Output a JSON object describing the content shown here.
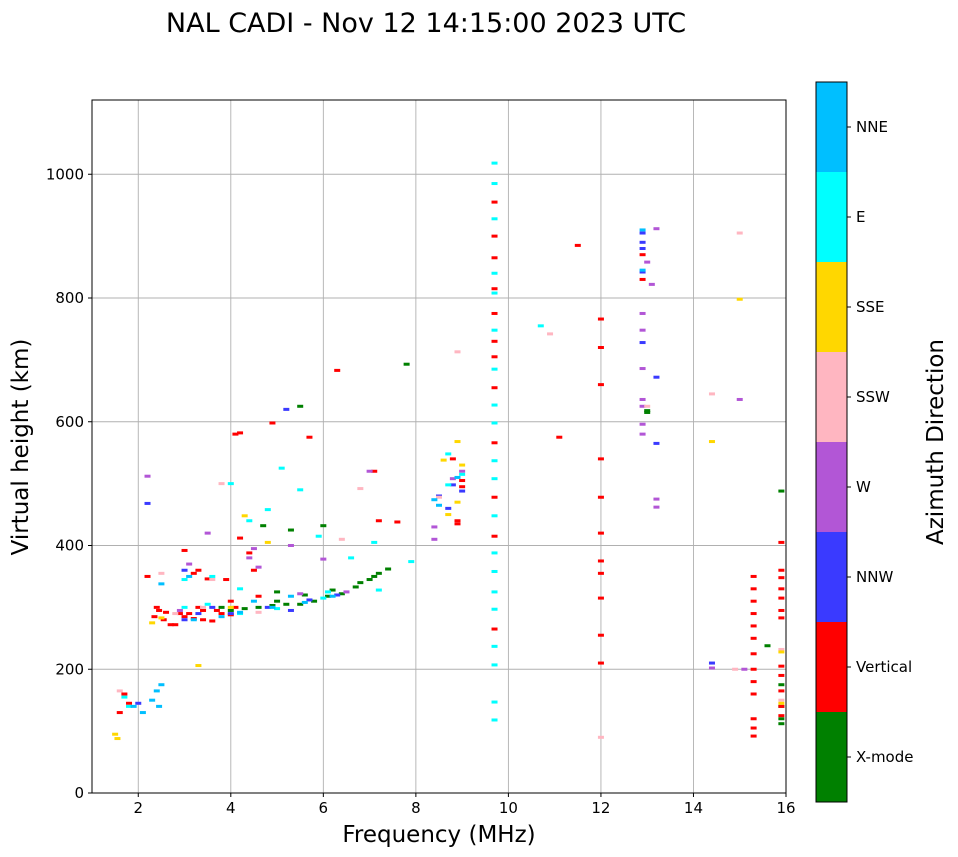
{
  "chart_data": {
    "type": "scatter",
    "title": "NAL CADI - Nov 12 14:15:00 2023 UTC",
    "xlabel": "Frequency (MHz)",
    "ylabel": "Virtual height (km)",
    "xlim": [
      1,
      16
    ],
    "ylim": [
      0,
      1120
    ],
    "x_ticks": [
      2,
      4,
      6,
      8,
      10,
      12,
      14,
      16
    ],
    "y_ticks": [
      0,
      200,
      400,
      600,
      800,
      1000
    ],
    "grid": true,
    "colorbar": {
      "label": "Azimuth Direction",
      "categories": [
        {
          "name": "X-mode",
          "color": "#008000"
        },
        {
          "name": "Vertical",
          "color": "#ff0000"
        },
        {
          "name": "NNW",
          "color": "#3a3aff"
        },
        {
          "name": "W",
          "color": "#b256d6"
        },
        {
          "name": "SSW",
          "color": "#ffb6c1"
        },
        {
          "name": "SSE",
          "color": "#ffd700"
        },
        {
          "name": "E",
          "color": "#00ffff"
        },
        {
          "name": "NNE",
          "color": "#00bfff"
        }
      ]
    },
    "series": [
      {
        "name": "X-mode",
        "points": [
          [
            4.0,
            295
          ],
          [
            4.3,
            298
          ],
          [
            4.6,
            300
          ],
          [
            4.9,
            303
          ],
          [
            5.2,
            305
          ],
          [
            5.5,
            305
          ],
          [
            5.8,
            310
          ],
          [
            6.1,
            318
          ],
          [
            6.4,
            322
          ],
          [
            6.7,
            333
          ],
          [
            7.0,
            345
          ],
          [
            7.2,
            355
          ],
          [
            7.4,
            362
          ],
          [
            3.8,
            300
          ],
          [
            5.0,
            310
          ],
          [
            5.6,
            320
          ],
          [
            6.2,
            328
          ],
          [
            6.8,
            340
          ],
          [
            7.1,
            350
          ],
          [
            7.8,
            693
          ],
          [
            5.5,
            625
          ],
          [
            5.3,
            425
          ],
          [
            4.7,
            432
          ],
          [
            6.0,
            432
          ],
          [
            15.9,
            488
          ],
          [
            15.6,
            238
          ],
          [
            15.9,
            175
          ],
          [
            15.9,
            140
          ],
          [
            15.9,
            120
          ],
          [
            15.9,
            112
          ],
          [
            13.0,
            618
          ],
          [
            13.0,
            615
          ],
          [
            5.0,
            325
          ]
        ]
      },
      {
        "name": "Vertical",
        "points": [
          [
            2.35,
            285
          ],
          [
            2.45,
            295
          ],
          [
            2.55,
            280
          ],
          [
            2.8,
            272
          ],
          [
            2.9,
            290
          ],
          [
            3.0,
            285
          ],
          [
            3.2,
            282
          ],
          [
            3.4,
            280
          ],
          [
            3.6,
            278
          ],
          [
            3.8,
            290
          ],
          [
            4.0,
            288
          ],
          [
            4.1,
            300
          ],
          [
            2.4,
            300
          ],
          [
            2.6,
            292
          ],
          [
            3.1,
            290
          ],
          [
            3.3,
            300
          ],
          [
            3.7,
            295
          ],
          [
            2.7,
            272
          ],
          [
            3.0,
            392
          ],
          [
            3.3,
            360
          ],
          [
            3.5,
            346
          ],
          [
            3.9,
            345
          ],
          [
            4.1,
            580
          ],
          [
            4.2,
            582
          ],
          [
            4.2,
            412
          ],
          [
            4.4,
            388
          ],
          [
            4.6,
            318
          ],
          [
            4.9,
            598
          ],
          [
            5.7,
            575
          ],
          [
            6.3,
            683
          ],
          [
            7.1,
            520
          ],
          [
            7.2,
            440
          ],
          [
            7.6,
            438
          ],
          [
            3.2,
            355
          ],
          [
            4.5,
            360
          ],
          [
            8.9,
            440
          ],
          [
            8.9,
            435
          ],
          [
            9.0,
            505
          ],
          [
            9.0,
            495
          ],
          [
            8.8,
            540
          ],
          [
            9.7,
            955
          ],
          [
            9.7,
            900
          ],
          [
            9.7,
            865
          ],
          [
            9.7,
            815
          ],
          [
            9.7,
            775
          ],
          [
            9.7,
            730
          ],
          [
            9.7,
            705
          ],
          [
            9.7,
            655
          ],
          [
            9.7,
            566
          ],
          [
            9.7,
            478
          ],
          [
            9.7,
            415
          ],
          [
            9.7,
            265
          ],
          [
            11.1,
            575
          ],
          [
            11.5,
            885
          ],
          [
            12.0,
            766
          ],
          [
            12.0,
            720
          ],
          [
            12.0,
            660
          ],
          [
            12.0,
            540
          ],
          [
            12.0,
            478
          ],
          [
            12.0,
            420
          ],
          [
            12.0,
            375
          ],
          [
            12.0,
            355
          ],
          [
            12.0,
            315
          ],
          [
            12.0,
            255
          ],
          [
            12.0,
            210
          ],
          [
            12.9,
            870
          ],
          [
            12.9,
            830
          ],
          [
            15.3,
            350
          ],
          [
            15.3,
            330
          ],
          [
            15.3,
            310
          ],
          [
            15.3,
            290
          ],
          [
            15.3,
            270
          ],
          [
            15.3,
            250
          ],
          [
            15.3,
            225
          ],
          [
            15.3,
            200
          ],
          [
            15.3,
            180
          ],
          [
            15.3,
            160
          ],
          [
            15.3,
            120
          ],
          [
            15.3,
            105
          ],
          [
            15.3,
            92
          ],
          [
            15.9,
            405
          ],
          [
            15.9,
            360
          ],
          [
            15.9,
            348
          ],
          [
            15.9,
            330
          ],
          [
            15.9,
            315
          ],
          [
            15.9,
            295
          ],
          [
            15.9,
            283
          ],
          [
            15.9,
            205
          ],
          [
            15.9,
            190
          ],
          [
            15.9,
            165
          ],
          [
            15.9,
            140
          ],
          [
            15.9,
            125
          ],
          [
            1.6,
            130
          ],
          [
            1.7,
            160
          ],
          [
            1.8,
            145
          ],
          [
            2.2,
            350
          ],
          [
            3.4,
            295
          ],
          [
            4.0,
            310
          ]
        ]
      },
      {
        "name": "NNW",
        "points": [
          [
            2.0,
            145
          ],
          [
            2.2,
            468
          ],
          [
            3.0,
            280
          ],
          [
            3.3,
            290
          ],
          [
            3.6,
            300
          ],
          [
            4.8,
            300
          ],
          [
            5.3,
            295
          ],
          [
            5.7,
            312
          ],
          [
            6.3,
            320
          ],
          [
            5.2,
            620
          ],
          [
            8.5,
            480
          ],
          [
            8.7,
            460
          ],
          [
            8.8,
            498
          ],
          [
            9.0,
            488
          ],
          [
            12.9,
            905
          ],
          [
            12.9,
            890
          ],
          [
            12.9,
            880
          ],
          [
            12.9,
            842
          ],
          [
            12.9,
            728
          ],
          [
            13.2,
            672
          ],
          [
            13.2,
            565
          ],
          [
            14.4,
            210
          ],
          [
            4.0,
            290
          ],
          [
            3.0,
            360
          ]
        ]
      },
      {
        "name": "W",
        "points": [
          [
            2.2,
            512
          ],
          [
            3.5,
            420
          ],
          [
            4.5,
            395
          ],
          [
            4.4,
            380
          ],
          [
            5.3,
            400
          ],
          [
            6.0,
            378
          ],
          [
            7.0,
            520
          ],
          [
            8.4,
            430
          ],
          [
            8.4,
            410
          ],
          [
            8.8,
            508
          ],
          [
            9.0,
            520
          ],
          [
            12.9,
            775
          ],
          [
            12.9,
            748
          ],
          [
            12.9,
            686
          ],
          [
            12.9,
            636
          ],
          [
            12.9,
            625
          ],
          [
            12.9,
            596
          ],
          [
            12.9,
            580
          ],
          [
            13.2,
            912
          ],
          [
            13.1,
            822
          ],
          [
            13.2,
            475
          ],
          [
            13.2,
            462
          ],
          [
            14.4,
            202
          ],
          [
            15.0,
            636
          ],
          [
            15.1,
            200
          ],
          [
            4.6,
            365
          ],
          [
            3.1,
            370
          ],
          [
            5.5,
            322
          ],
          [
            6.5,
            325
          ],
          [
            2.9,
            295
          ],
          [
            13.0,
            858
          ]
        ]
      },
      {
        "name": "SSW",
        "points": [
          [
            1.6,
            165
          ],
          [
            2.5,
            355
          ],
          [
            3.4,
            300
          ],
          [
            3.8,
            500
          ],
          [
            4.6,
            292
          ],
          [
            6.4,
            410
          ],
          [
            6.8,
            492
          ],
          [
            8.5,
            478
          ],
          [
            8.9,
            713
          ],
          [
            10.9,
            742
          ],
          [
            12.0,
            90
          ],
          [
            14.4,
            645
          ],
          [
            15.0,
            905
          ],
          [
            14.9,
            200
          ],
          [
            15.9,
            232
          ],
          [
            15.9,
            150
          ],
          [
            13.0,
            625
          ],
          [
            3.6,
            345
          ],
          [
            2.8,
            290
          ]
        ]
      },
      {
        "name": "SSE",
        "points": [
          [
            1.5,
            95
          ],
          [
            1.55,
            88
          ],
          [
            2.3,
            275
          ],
          [
            2.5,
            283
          ],
          [
            3.3,
            206
          ],
          [
            4.3,
            448
          ],
          [
            4.8,
            405
          ],
          [
            8.7,
            450
          ],
          [
            8.9,
            470
          ],
          [
            8.9,
            568
          ],
          [
            9.0,
            530
          ],
          [
            8.6,
            538
          ],
          [
            14.4,
            568
          ],
          [
            15.0,
            798
          ],
          [
            15.9,
            228
          ],
          [
            15.9,
            145
          ],
          [
            4.0,
            300
          ]
        ]
      },
      {
        "name": "E",
        "points": [
          [
            1.7,
            155
          ],
          [
            1.8,
            140
          ],
          [
            3.0,
            345
          ],
          [
            3.5,
            305
          ],
          [
            3.6,
            350
          ],
          [
            4.0,
            500
          ],
          [
            4.2,
            330
          ],
          [
            4.2,
            290
          ],
          [
            4.4,
            440
          ],
          [
            4.8,
            458
          ],
          [
            5.1,
            525
          ],
          [
            5.5,
            490
          ],
          [
            5.9,
            415
          ],
          [
            6.1,
            325
          ],
          [
            6.6,
            380
          ],
          [
            7.1,
            405
          ],
          [
            7.2,
            328
          ],
          [
            7.9,
            374
          ],
          [
            8.7,
            548
          ],
          [
            8.7,
            498
          ],
          [
            9.0,
            515
          ],
          [
            9.7,
            1018
          ],
          [
            9.7,
            985
          ],
          [
            9.7,
            928
          ],
          [
            9.7,
            840
          ],
          [
            9.7,
            808
          ],
          [
            9.7,
            748
          ],
          [
            9.7,
            685
          ],
          [
            9.7,
            627
          ],
          [
            9.7,
            598
          ],
          [
            9.7,
            537
          ],
          [
            9.7,
            508
          ],
          [
            9.7,
            448
          ],
          [
            9.7,
            388
          ],
          [
            9.7,
            358
          ],
          [
            9.7,
            325
          ],
          [
            9.7,
            297
          ],
          [
            9.7,
            237
          ],
          [
            9.7,
            207
          ],
          [
            9.7,
            147
          ],
          [
            9.7,
            118
          ],
          [
            10.7,
            755
          ],
          [
            3.0,
            300
          ],
          [
            5.0,
            298
          ],
          [
            6.0,
            315
          ]
        ]
      },
      {
        "name": "NNE",
        "points": [
          [
            1.9,
            140
          ],
          [
            2.1,
            130
          ],
          [
            2.3,
            150
          ],
          [
            2.4,
            165
          ],
          [
            2.5,
            175
          ],
          [
            2.45,
            140
          ],
          [
            3.2,
            280
          ],
          [
            2.5,
            338
          ],
          [
            3.8,
            285
          ],
          [
            4.2,
            292
          ],
          [
            4.9,
            300
          ],
          [
            5.6,
            308
          ],
          [
            6.2,
            318
          ],
          [
            8.4,
            474
          ],
          [
            8.5,
            465
          ],
          [
            8.9,
            510
          ],
          [
            12.9,
            845
          ],
          [
            12.9,
            910
          ],
          [
            3.1,
            350
          ],
          [
            4.5,
            310
          ],
          [
            5.3,
            318
          ]
        ]
      }
    ]
  }
}
